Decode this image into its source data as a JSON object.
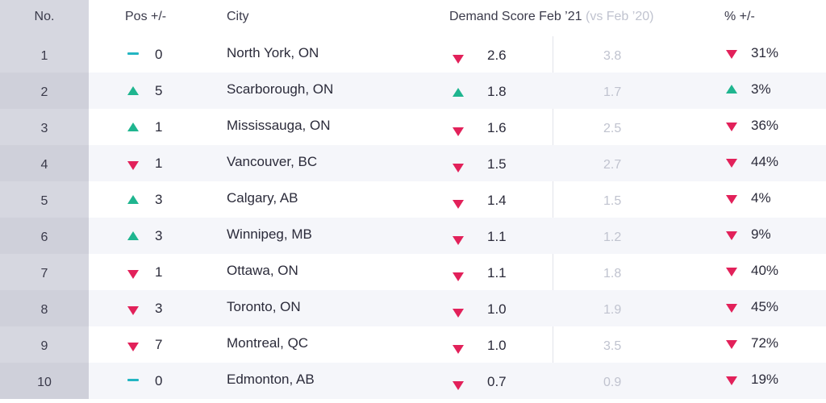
{
  "colors": {
    "up": "#1fb58f",
    "down": "#e2215a",
    "neutral": "#23b5c2",
    "muted_text": "#c0c3cf",
    "no_column_bg": "#d6d7e0",
    "row_alt_bg": "#f5f6fa"
  },
  "header": {
    "no": "No.",
    "pos": "Pos +/-",
    "city": "City",
    "demand": "Demand Score Feb  ’21",
    "demand_compare": "(vs Feb ’20)",
    "pct": "% +/-"
  },
  "rows": [
    {
      "no": "1",
      "pos_icon": "dash-icon",
      "pos": "0",
      "city": "North York, ON",
      "demand_icon": "arrow-down-icon",
      "demand": "2.6",
      "prev": "3.8",
      "pct_icon": "arrow-down-icon",
      "pct": "31%"
    },
    {
      "no": "2",
      "pos_icon": "arrow-up-icon",
      "pos": "5",
      "city": "Scarborough, ON",
      "demand_icon": "arrow-up-icon",
      "demand": "1.8",
      "prev": "1.7",
      "pct_icon": "arrow-up-icon",
      "pct": "3%"
    },
    {
      "no": "3",
      "pos_icon": "arrow-up-icon",
      "pos": "1",
      "city": "Mississauga, ON",
      "demand_icon": "arrow-down-icon",
      "demand": "1.6",
      "prev": "2.5",
      "pct_icon": "arrow-down-icon",
      "pct": "36%"
    },
    {
      "no": "4",
      "pos_icon": "arrow-down-icon",
      "pos": "1",
      "city": "Vancouver, BC",
      "demand_icon": "arrow-down-icon",
      "demand": "1.5",
      "prev": "2.7",
      "pct_icon": "arrow-down-icon",
      "pct": "44%"
    },
    {
      "no": "5",
      "pos_icon": "arrow-up-icon",
      "pos": "3",
      "city": "Calgary, AB",
      "demand_icon": "arrow-down-icon",
      "demand": "1.4",
      "prev": "1.5",
      "pct_icon": "arrow-down-icon",
      "pct": "4%"
    },
    {
      "no": "6",
      "pos_icon": "arrow-up-icon",
      "pos": "3",
      "city": "Winnipeg, MB",
      "demand_icon": "arrow-down-icon",
      "demand": "1.1",
      "prev": "1.2",
      "pct_icon": "arrow-down-icon",
      "pct": "9%"
    },
    {
      "no": "7",
      "pos_icon": "arrow-down-icon",
      "pos": "1",
      "city": "Ottawa, ON",
      "demand_icon": "arrow-down-icon",
      "demand": "1.1",
      "prev": "1.8",
      "pct_icon": "arrow-down-icon",
      "pct": "40%"
    },
    {
      "no": "8",
      "pos_icon": "arrow-down-icon",
      "pos": "3",
      "city": "Toronto, ON",
      "demand_icon": "arrow-down-icon",
      "demand": "1.0",
      "prev": "1.9",
      "pct_icon": "arrow-down-icon",
      "pct": "45%"
    },
    {
      "no": "9",
      "pos_icon": "arrow-down-icon",
      "pos": "7",
      "city": "Montreal, QC",
      "demand_icon": "arrow-down-icon",
      "demand": "1.0",
      "prev": "3.5",
      "pct_icon": "arrow-down-icon",
      "pct": "72%"
    },
    {
      "no": "10",
      "pos_icon": "dash-icon",
      "pos": "0",
      "city": "Edmonton, AB",
      "demand_icon": "arrow-down-icon",
      "demand": "0.7",
      "prev": "0.9",
      "pct_icon": "arrow-down-icon",
      "pct": "19%"
    }
  ]
}
